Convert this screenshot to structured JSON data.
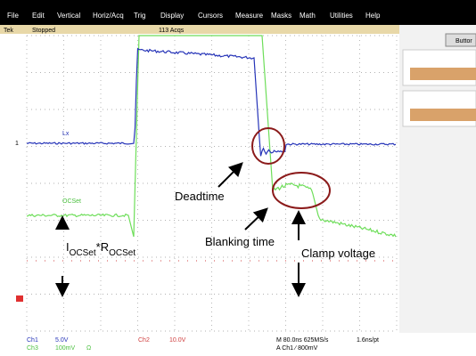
{
  "menu": [
    "File",
    "Edit",
    "Vertical",
    "Horiz/Acq",
    "Trig",
    "Display",
    "Cursors",
    "Measure",
    "Masks",
    "Math",
    "Utilities",
    "Help"
  ],
  "status": {
    "brand": "Tek",
    "state": "Stopped",
    "acqs": "113 Acqs"
  },
  "side_button": "Buttor",
  "traces": {
    "ch1_marker": "1",
    "ch1_label": "Lx",
    "ch2_label": "OCSet"
  },
  "annotations": {
    "deadtime": "Deadtime",
    "blanking": "Blanking time",
    "clamp": "Clamp voltage",
    "formula": {
      "i": "I",
      "i_sub": "OCSet",
      "r": "*R",
      "r_sub": "OCSet"
    }
  },
  "readout": {
    "ch1": "Ch1",
    "ch1_scale": "5.0V",
    "ch3": "Ch3",
    "ch3_scale": "100mV",
    "ch3_coupling": "Ω",
    "ch2": "Ch2",
    "ch2_scale": "10.0V",
    "horiz": "M 80.0ns 625MS/s",
    "res": "1.6ns/pt",
    "trig": "A  Ch1  ∕  800mV"
  }
}
